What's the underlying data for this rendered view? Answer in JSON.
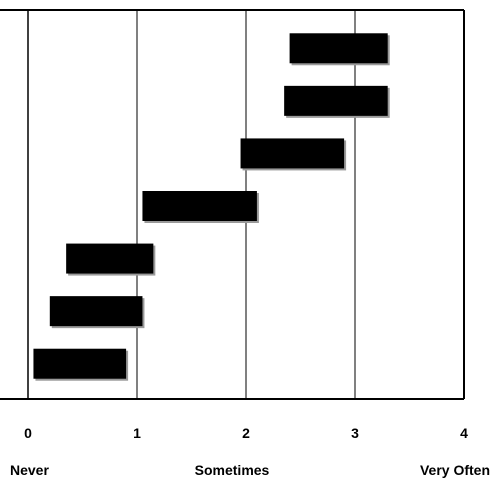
{
  "chart_data": {
    "type": "bar",
    "orientation": "horizontal-range",
    "title": "",
    "xlabel": "",
    "ylabel": "",
    "xlim": [
      0,
      4
    ],
    "xticks": [
      0,
      1,
      2,
      3,
      4
    ],
    "x_tick_labels": [
      "0",
      "1",
      "2",
      "3",
      "4"
    ],
    "scale_labels": {
      "low": "Never",
      "mid": "Sometimes",
      "high": "Very Often"
    },
    "grid": "vertical",
    "legend": "none",
    "bar_color": "#000000",
    "ranges": [
      {
        "start": 2.4,
        "end": 3.3
      },
      {
        "start": 2.35,
        "end": 3.3
      },
      {
        "start": 1.95,
        "end": 2.9
      },
      {
        "start": 1.05,
        "end": 2.1
      },
      {
        "start": 0.35,
        "end": 1.15
      },
      {
        "start": 0.2,
        "end": 1.05
      },
      {
        "start": 0.05,
        "end": 0.9
      }
    ]
  }
}
